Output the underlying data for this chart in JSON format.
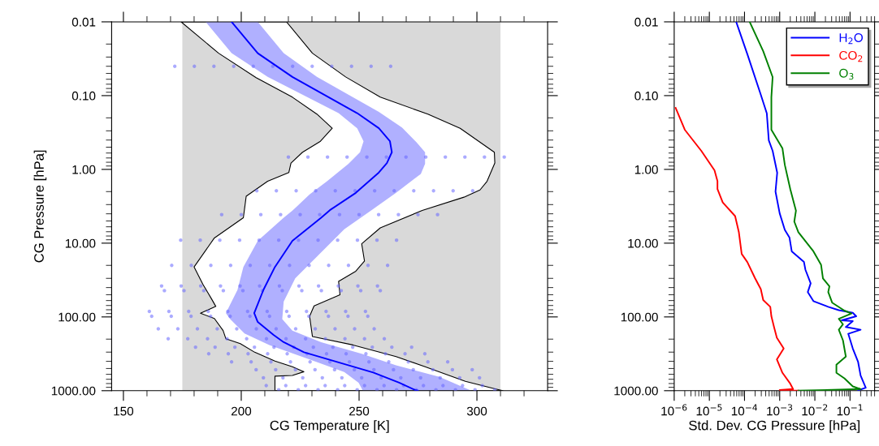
{
  "chart_data": [
    {
      "type": "line",
      "xlabel": "CG Temperature [K]",
      "ylabel": "CG Pressure [hPa]",
      "log": "y",
      "xlim": [
        145,
        330
      ],
      "xticks": [
        150,
        {
          "value": 160,
          "label": null
        },
        {
          "value": 170,
          "label": null
        },
        {
          "value": 180,
          "label": null
        },
        {
          "value": 190,
          "label": null
        },
        200,
        {
          "value": 210,
          "label": null
        },
        {
          "value": 220,
          "label": null
        },
        {
          "value": 230,
          "label": null
        },
        {
          "value": 240,
          "label": null
        },
        250,
        {
          "value": 260,
          "label": null
        },
        {
          "value": 270,
          "label": null
        },
        {
          "value": 280,
          "label": null
        },
        {
          "value": 290,
          "label": null
        },
        300,
        {
          "value": 310,
          "label": null
        },
        {
          "value": 320,
          "label": null
        }
      ],
      "ylim": [
        1000,
        0.01
      ],
      "yticks": [
        0.01,
        {
          "value": 0.1,
          "label": "0.10"
        },
        {
          "value": 1,
          "label": "1.00"
        },
        {
          "value": 10,
          "label": "10.00"
        },
        {
          "value": 100,
          "label": "100.00"
        },
        {
          "value": 1000,
          "label": "1000.00"
        }
      ],
      "bands": [
        {
          "axis": "x",
          "from": 175,
          "to": 310,
          "color": "#d9d9d9"
        }
      ],
      "series": [
        {
          "type": "area",
          "color": "#ffffff",
          "line_style": "solid",
          "x": [
            174.5,
            190.4,
            206.3,
            221.7,
            232.1,
            238.6,
            233.6,
            226.0,
            221.1,
            220.2,
            211.2,
            202.1,
            200.9,
            188.6,
            180.0,
            183.7,
            187.4,
            189.2,
            182.7,
            188.6,
            192.3,
            193.5,
            199.6,
            205.7,
            214.3,
            221.7,
            226.6,
            221.7,
            214.3,
            214.3,
            311,
            308.0,
            295.1,
            278.0,
            265.7,
            247.4,
            230.2,
            229.0,
            230.9,
            241.9,
            241.3,
            248.6,
            252.3,
            251.1,
            259.0,
            276.8,
            294.5,
            301.3,
            304.3,
            307.6,
            307.4,
            292.9,
            279.2,
            259.0,
            244.3,
            230.2,
            219.2
          ],
          "values": [
            0.01,
            0.0266,
            0.057,
            0.105,
            0.178,
            0.277,
            0.416,
            0.586,
            0.82,
            1.1,
            1.45,
            2.31,
            4.52,
            8.5,
            21,
            36,
            57,
            72,
            89,
            105,
            153,
            198,
            230,
            301,
            396,
            474,
            553,
            621,
            635,
            1000,
            1000,
            950,
            746,
            474,
            345,
            240,
            184,
            98,
            71,
            50,
            33,
            24,
            17.5,
            10.2,
            6.2,
            3.6,
            2.38,
            1.9,
            1.45,
            0.82,
            0.586,
            0.277,
            0.178,
            0.105,
            0.0558,
            0.0266,
            0.01
          ]
        },
        {
          "type": "area",
          "color": "#b0b0ff",
          "x": [
            184.9,
            195.9,
            211.2,
            241.3,
            249.2,
            251.9,
            250.4,
            245.5,
            236.4,
            229.0,
            221.7,
            218.0,
            207.0,
            200.9,
            198.4,
            195.3,
            193.5,
            195.3,
            201.4,
            211.9,
            229.0,
            243.7,
            249.8,
            251.6,
            297.6,
            284.1,
            265.7,
            251.1,
            233.9,
            221.7,
            217.4,
            218.0,
            222.9,
            233.9,
            243.7,
            256.0,
            265.7,
            276.2,
            278.0,
            278.0,
            274.3,
            268.2,
            258.4,
            232.1,
            218.0,
            207.0
          ],
          "values": [
            0.01,
            0.0266,
            0.0558,
            0.173,
            0.277,
            0.416,
            0.586,
            0.84,
            1.45,
            2.19,
            3.63,
            4.52,
            9.3,
            21,
            43,
            68,
            89,
            107,
            168,
            240,
            378,
            557,
            778,
            1000,
            1000,
            650,
            453,
            316,
            220,
            153,
            107,
            62,
            30,
            13.3,
            6.5,
            3.44,
            2.08,
            1.15,
            0.84,
            0.586,
            0.426,
            0.271,
            0.166,
            0.0558,
            0.0266,
            0.01
          ]
        },
        {
          "type": "scatter",
          "color": "#6666ff",
          "marker": "circle",
          "x": [
            171.8,
            180.1,
            188.4,
            196.8,
            205.1,
            213.4,
            221.8,
            230.1,
            238.4,
            246.8,
            255.1,
            263.4,
            220.0,
            228.3,
            236.6,
            244.9,
            253.3,
            261.6,
            269.9,
            278.3,
            286.6,
            294.9,
            303.2,
            311.6,
            206.6,
            214.9,
            223.3,
            231.6,
            239.9,
            248.3,
            256.6,
            264.9,
            273.2,
            281.6,
            289.9,
            298.2,
            191.7,
            200.0,
            208.3,
            216.7,
            225.0,
            233.3,
            241.7,
            250.0,
            258.3,
            266.7,
            275.0,
            283.3,
            174.3,
            182.6,
            190.9,
            199.3,
            207.6,
            215.9,
            224.3,
            232.6,
            240.9,
            249.3,
            257.6,
            265.9,
            170.5,
            178.8,
            187.1,
            195.5,
            203.8,
            212.1,
            220.5,
            228.8,
            237.1,
            245.5,
            253.8,
            262.1,
            166.2,
            174.5,
            182.8,
            191.2,
            199.5,
            207.8,
            216.2,
            224.5,
            232.8,
            241.2,
            249.5,
            257.8,
            167.4,
            175.7,
            184.1,
            192.4,
            200.7,
            209.0,
            217.4,
            225.7,
            234.0,
            242.4,
            250.7,
            259.0,
            161.0,
            169.3,
            177.7,
            186.0,
            194.3,
            202.7,
            211.0,
            219.3,
            227.7,
            236.0,
            244.3,
            252.7,
            162.0,
            170.3,
            178.7,
            187.0,
            195.3,
            203.7,
            212.0,
            220.3,
            228.7,
            237.0,
            245.3,
            253.7,
            164.8,
            173.1,
            181.4,
            189.8,
            198.1,
            206.4,
            214.8,
            223.1,
            231.4,
            239.8,
            248.1,
            256.4,
            169.0,
            177.3,
            185.7,
            194.0,
            202.3,
            210.7,
            219.0,
            227.3,
            235.7,
            244.0,
            252.3,
            260.7,
            180.6,
            188.9,
            197.3,
            205.6,
            213.9,
            222.3,
            230.6,
            238.9,
            247.3,
            255.6,
            263.9,
            272.3,
            186.2,
            194.5,
            202.9,
            211.2,
            219.5,
            227.9,
            236.2,
            244.5,
            252.9,
            261.2,
            269.5,
            277.9,
            195.9,
            204.2,
            212.6,
            220.9,
            229.2,
            237.6,
            245.9,
            254.2,
            262.6,
            270.9,
            279.2,
            287.6,
            206.3,
            214.6,
            223.0,
            231.3,
            239.6,
            248.0,
            256.3,
            264.6,
            273.0,
            281.3,
            289.6,
            298.0,
            209.4,
            217.7,
            226.1,
            234.4,
            242.7,
            251.1,
            259.4,
            267.7,
            276.1,
            284.4,
            292.7,
            301.1,
            210.6,
            218.9,
            227.3,
            235.6,
            243.9,
            252.3,
            260.6,
            268.9,
            277.3,
            285.6,
            293.9,
            302.3,
            215.9,
            224.2,
            232.6,
            240.9,
            249.2,
            257.6,
            265.9,
            274.2,
            282.6,
            290.9,
            299.2,
            307.6
          ],
          "values": [
            0.04,
            0.04,
            0.04,
            0.04,
            0.04,
            0.04,
            0.04,
            0.04,
            0.04,
            0.04,
            0.04,
            0.04,
            0.68,
            0.68,
            0.68,
            0.68,
            0.68,
            0.68,
            0.68,
            0.68,
            0.68,
            0.68,
            0.68,
            0.68,
            1.95,
            1.95,
            1.95,
            1.95,
            1.95,
            1.95,
            1.95,
            1.95,
            1.95,
            1.95,
            1.95,
            1.95,
            4.1,
            4.1,
            4.1,
            4.1,
            4.1,
            4.1,
            4.1,
            4.1,
            4.1,
            4.1,
            4.1,
            4.1,
            9.1,
            9.1,
            9.1,
            9.1,
            9.1,
            9.1,
            9.1,
            9.1,
            9.1,
            9.1,
            9.1,
            9.1,
            20,
            20,
            20,
            20,
            20,
            20,
            20,
            20,
            20,
            20,
            20,
            20,
            38,
            38,
            38,
            38,
            38,
            38,
            38,
            38,
            38,
            38,
            38,
            38,
            44,
            44,
            44,
            44,
            44,
            44,
            44,
            44,
            44,
            44,
            44,
            44,
            84,
            84,
            84,
            84,
            84,
            84,
            84,
            84,
            84,
            84,
            84,
            84,
            98,
            98,
            98,
            98,
            98,
            98,
            98,
            98,
            98,
            98,
            98,
            98,
            145,
            145,
            145,
            145,
            145,
            145,
            145,
            145,
            145,
            145,
            145,
            145,
            198,
            198,
            198,
            198,
            198,
            198,
            198,
            198,
            198,
            198,
            198,
            198,
            257,
            257,
            257,
            257,
            257,
            257,
            257,
            257,
            257,
            257,
            257,
            257,
            316,
            316,
            316,
            316,
            316,
            316,
            316,
            316,
            316,
            316,
            316,
            316,
            406,
            406,
            406,
            406,
            406,
            406,
            406,
            406,
            406,
            406,
            406,
            406,
            519,
            519,
            519,
            519,
            519,
            519,
            519,
            519,
            519,
            519,
            519,
            519,
            668,
            668,
            668,
            668,
            668,
            668,
            668,
            668,
            668,
            668,
            668,
            668,
            853,
            853,
            853,
            853,
            853,
            853,
            853,
            853,
            853,
            853,
            853,
            853,
            970,
            970,
            970,
            970,
            970,
            970,
            970,
            970,
            970,
            970,
            970,
            970
          ]
        },
        {
          "type": "line",
          "color": "#0000ff",
          "x": [
            195.9,
            207.0,
            221.7,
            249.2,
            258.4,
            263.1,
            263.9,
            261.8,
            258.4,
            248.6,
            237.6,
            233.9,
            221.7,
            214.3,
            209.4,
            205.5,
            207.0,
            213.7,
            218.0,
            226.6,
            241.3,
            256.0,
            267.0,
            273.7,
            275.0
          ],
          "values": [
            0.01,
            0.0266,
            0.0558,
            0.173,
            0.277,
            0.416,
            0.586,
            0.82,
            1.1,
            2.08,
            3.57,
            4.52,
            9.3,
            21,
            43,
            89,
            117,
            175,
            220,
            301,
            413,
            567,
            778,
            977,
            1000
          ]
        }
      ]
    },
    {
      "type": "line",
      "xlabel": "Std. Dev. CG Pressure [hPa]",
      "log": "xy",
      "legend": "top right",
      "xlim": [
        1e-06,
        0.5
      ],
      "xticks": [
        {
          "value": 1e-06,
          "label": "10$^{−6}$"
        },
        {
          "value": 1e-05,
          "label": "10$^{−5}$"
        },
        {
          "value": 0.0001,
          "label": "10$^{−4}$"
        },
        {
          "value": 0.001,
          "label": "10$^{−3}$"
        },
        {
          "value": 0.01,
          "label": "10$^{−2}$"
        },
        {
          "value": 0.1,
          "label": "10$^{−1}$"
        }
      ],
      "ylim": [
        1000,
        0.01
      ],
      "yticks": [
        0.01,
        {
          "value": 0.1,
          "label": "0.10"
        },
        {
          "value": 1,
          "label": "1.00"
        },
        {
          "value": 10,
          "label": "10.00"
        },
        {
          "value": 100,
          "label": "100.00"
        },
        {
          "value": 1000,
          "label": "1000.00"
        }
      ],
      "series": [
        {
          "name": "H$_{2}$O",
          "color": "#0000ff",
          "x": [
            5.8e-05,
            0.00012,
            0.00029,
            0.00043,
            0.00049,
            0.00063,
            0.00085,
            0.00076,
            0.001,
            0.0014,
            0.0019,
            0.0022,
            0.0049,
            0.0054,
            0.0076,
            0.0063,
            0.0091,
            0.024,
            0.048,
            0.12,
            0.15,
            0.058,
            0.12,
            0.076,
            0.2,
            0.089,
            0.12,
            0.17,
            0.2,
            0.28,
            0.17
          ],
          "values": [
            0.01,
            0.0273,
            0.097,
            0.174,
            0.405,
            0.56,
            1.11,
            2.0,
            3.95,
            6.6,
            8.4,
            12.9,
            18,
            23,
            35,
            46,
            61,
            73,
            81,
            88,
            98,
            111,
            114,
            137,
            149,
            169,
            268,
            409,
            624,
            912,
            990
          ]
        },
        {
          "name": "CO$_{2}$",
          "color": "#ff0000",
          "x": [
            1.1e-06,
            2e-06,
            5.9e-06,
            1.4e-05,
            1.7e-05,
            1.7e-05,
            2.4e-05,
            5.4e-05,
            6.9e-05,
            8.3e-05,
            0.00012,
            0.0002,
            0.00029,
            0.00034,
            0.00054,
            0.00058,
            0.00069,
            0.00083,
            0.0013,
            0.00083,
            0.0012,
            0.002,
            0.0024,
            0.001,
            0.0034
          ],
          "values": [
            0.147,
            0.29,
            0.56,
            1.03,
            1.44,
            1.85,
            2.8,
            4.3,
            7.1,
            14,
            18,
            30,
            42,
            59,
            73,
            98,
            137,
            191,
            268,
            376,
            573,
            804,
            951,
            980,
            1000
          ]
        },
        {
          "name": "O$_{3}$",
          "color": "#008000",
          "x": [
            0.00014,
            0.00034,
            0.00063,
            0.00058,
            0.00058,
            0.0012,
            0.0014,
            0.002,
            0.0029,
            0.0026,
            0.0034,
            0.0091,
            0.015,
            0.017,
            0.026,
            0.024,
            0.031,
            0.069,
            0.11,
            0.048,
            0.063,
            0.048,
            0.063,
            0.076,
            0.041,
            0.041,
            0.069,
            0.12,
            0.2,
            0.0034
          ],
          "values": [
            0.01,
            0.025,
            0.056,
            0.105,
            0.29,
            0.52,
            0.87,
            1.85,
            3.63,
            5.1,
            7.1,
            12.9,
            19.6,
            30,
            38.5,
            46,
            64,
            82,
            90,
            106,
            126,
            149,
            208,
            345,
            445,
            573,
            679,
            875,
            951,
            1000
          ]
        }
      ]
    }
  ]
}
